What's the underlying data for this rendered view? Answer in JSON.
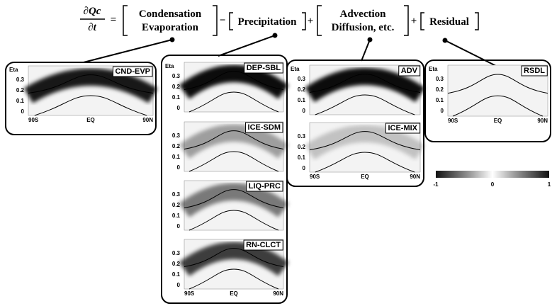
{
  "equation": {
    "numerator": "∂Qc",
    "denominator": "∂t",
    "operators": [
      "=",
      "−",
      "+",
      "+"
    ],
    "terms": [
      [
        "Condensation",
        "Evaporation"
      ],
      [
        "Precipitation"
      ],
      [
        "Advection",
        "Diffusion, etc."
      ],
      [
        "Residual"
      ]
    ]
  },
  "axes": {
    "y_title": "Eta",
    "y_ticks": [
      "0.3",
      "0.2",
      "0.1",
      "0"
    ],
    "x_ticks": [
      "90S",
      "EQ",
      "90N"
    ]
  },
  "groups": [
    {
      "panels": [
        {
          "label": "CND-EVP"
        }
      ]
    },
    {
      "panels": [
        {
          "label": "DEP-SBL"
        },
        {
          "label": "ICE-SDM"
        },
        {
          "label": "LIQ-PRC"
        },
        {
          "label": "RN-CLCT"
        }
      ]
    },
    {
      "panels": [
        {
          "label": "ADV"
        },
        {
          "label": "ICE-MIX"
        }
      ]
    },
    {
      "panels": [
        {
          "label": "RSDL"
        }
      ]
    }
  ],
  "colorbar": {
    "ticks": [
      -1,
      0,
      1
    ]
  }
}
